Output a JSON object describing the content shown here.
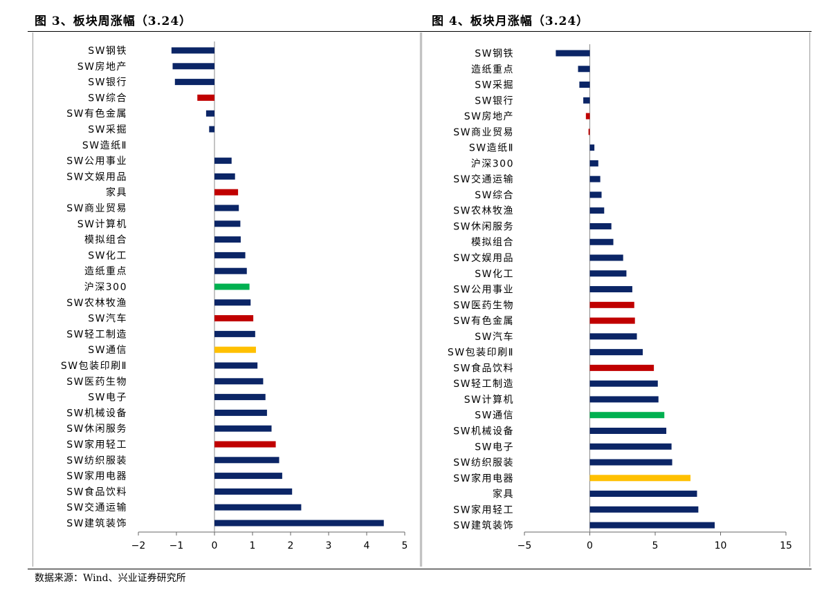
{
  "header": {
    "left_title": "图 3、板块周涨幅（3.24）",
    "right_title": "图 4、板块月涨幅（3.24）"
  },
  "footer": {
    "source": "数据来源：Wind、兴业证券研究所"
  },
  "colors": {
    "navy": "#0b2566",
    "red": "#c00000",
    "green": "#00b050",
    "gold": "#ffc000"
  },
  "chart_data": [
    {
      "type": "bar",
      "orientation": "horizontal",
      "xlim": [
        -2,
        5
      ],
      "xticks": [
        -2,
        -1,
        0,
        1,
        2,
        3,
        4,
        5
      ],
      "categories": [
        "SW钢铁",
        "SW房地产",
        "SW银行",
        "SW综合",
        "SW有色金属",
        "SW采掘",
        "SW造纸Ⅱ",
        "SW公用事业",
        "SW文娱用品",
        "家具",
        "SW商业贸易",
        "SW计算机",
        "模拟组合",
        "SW化工",
        "造纸重点",
        "沪深300",
        "SW农林牧渔",
        "SW汽车",
        "SW轻工制造",
        "SW通信",
        "SW包装印刷Ⅱ",
        "SW医药生物",
        "SW电子",
        "SW机械设备",
        "SW休闲服务",
        "SW家用轻工",
        "SW纺织服装",
        "SW家用电器",
        "SW食品饮料",
        "SW交通运输",
        "SW建筑装饰"
      ],
      "values": [
        -1.13,
        -1.1,
        -1.04,
        -0.45,
        -0.22,
        -0.14,
        0,
        0.45,
        0.54,
        0.62,
        0.64,
        0.68,
        0.69,
        0.81,
        0.85,
        0.92,
        0.95,
        1.02,
        1.07,
        1.09,
        1.13,
        1.28,
        1.34,
        1.38,
        1.5,
        1.61,
        1.7,
        1.78,
        2.04,
        2.28,
        4.45
      ],
      "bar_colors": [
        "navy",
        "navy",
        "navy",
        "red",
        "navy",
        "navy",
        "navy",
        "navy",
        "navy",
        "red",
        "navy",
        "navy",
        "navy",
        "navy",
        "navy",
        "green",
        "navy",
        "red",
        "navy",
        "gold",
        "navy",
        "navy",
        "navy",
        "navy",
        "navy",
        "red",
        "navy",
        "navy",
        "navy",
        "navy",
        "navy"
      ]
    },
    {
      "type": "bar",
      "orientation": "horizontal",
      "xlim": [
        -5,
        15
      ],
      "xticks": [
        -5,
        0,
        5,
        10,
        15
      ],
      "categories": [
        "SW钢铁",
        "造纸重点",
        "SW采掘",
        "SW银行",
        "SW房地产",
        "SW商业贸易",
        "SW造纸Ⅱ",
        "沪深300",
        "SW交通运输",
        "SW综合",
        "SW农林牧渔",
        "SW休闲服务",
        "模拟组合",
        "SW文娱用品",
        "SW化工",
        "SW公用事业",
        "SW医药生物",
        "SW有色金属",
        "SW汽车",
        "SW包装印刷Ⅱ",
        "SW食品饮料",
        "SW轻工制造",
        "SW计算机",
        "SW通信",
        "SW机械设备",
        "SW电子",
        "SW纺织服装",
        "SW家用电器",
        "家具",
        "SW家用轻工",
        "SW建筑装饰"
      ],
      "values": [
        -2.6,
        -0.9,
        -0.8,
        -0.5,
        -0.3,
        -0.1,
        0.35,
        0.65,
        0.8,
        0.9,
        1.1,
        1.65,
        1.8,
        2.55,
        2.8,
        3.25,
        3.4,
        3.45,
        3.6,
        4.05,
        4.9,
        5.2,
        5.25,
        5.7,
        5.85,
        6.25,
        6.3,
        7.7,
        8.2,
        8.3,
        9.55
      ],
      "bar_colors": [
        "navy",
        "navy",
        "navy",
        "navy",
        "red",
        "red",
        "navy",
        "navy",
        "navy",
        "navy",
        "navy",
        "navy",
        "navy",
        "navy",
        "navy",
        "navy",
        "red",
        "red",
        "navy",
        "navy",
        "red",
        "navy",
        "navy",
        "green",
        "navy",
        "navy",
        "navy",
        "gold",
        "navy",
        "navy",
        "navy"
      ]
    }
  ]
}
